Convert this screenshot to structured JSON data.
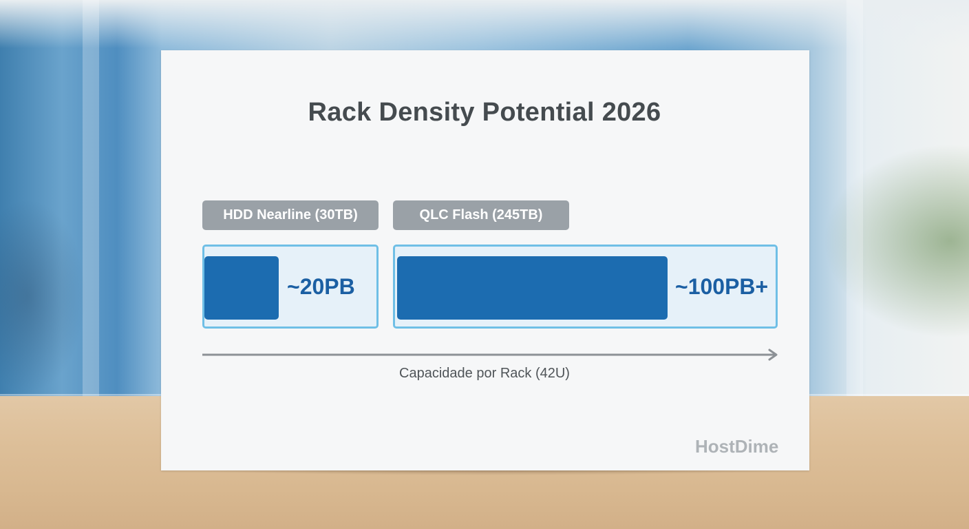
{
  "chart_data": {
    "type": "bar",
    "orientation": "horizontal",
    "title": "Rack Density Potential 2026",
    "xlabel": "Capacidade por Rack (42U)",
    "ylabel": "",
    "categories": [
      "HDD Nearline (30TB)",
      "QLC Flash (245TB)"
    ],
    "values": [
      20,
      100
    ],
    "value_labels": [
      "~20PB",
      "~100PB+"
    ],
    "unit": "PB",
    "fill_fraction": [
      0.43,
      0.71
    ],
    "colors": {
      "bar": "#1c6cb0",
      "box_border": "#6fbfe6",
      "box_fill": "#e6f1f9",
      "tag": "#9aa1a7",
      "value_text": "#1b5fa3"
    },
    "grid": false,
    "legend": "none"
  },
  "brand": "HostDime"
}
